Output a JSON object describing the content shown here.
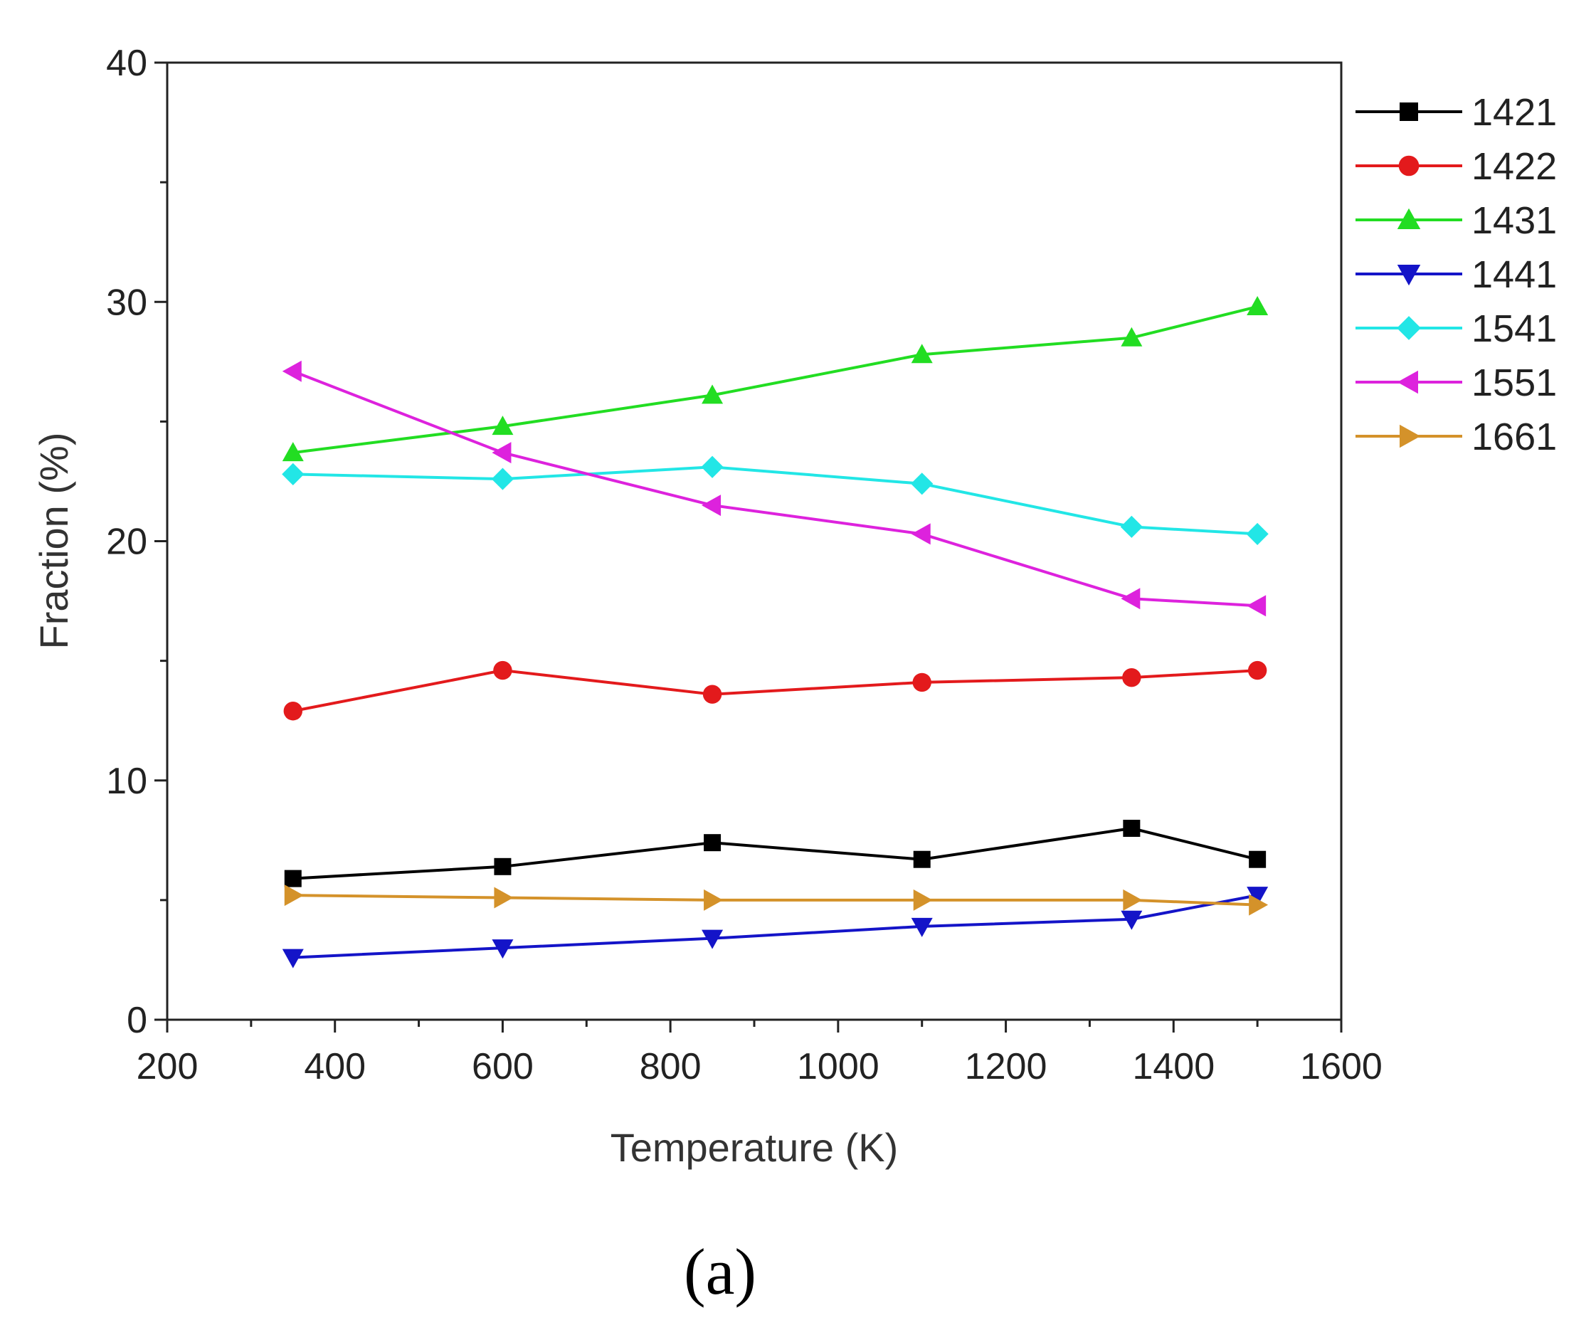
{
  "chart_data": {
    "type": "line",
    "title": "",
    "xlabel": "Temperature (K)",
    "ylabel": "Fraction (%)",
    "xlim": [
      200,
      1600
    ],
    "ylim": [
      0,
      40
    ],
    "xticks": [
      200,
      400,
      600,
      800,
      1000,
      1200,
      1400,
      1600
    ],
    "yticks": [
      0,
      10,
      20,
      30,
      40
    ],
    "grid": false,
    "legend_position": "right",
    "x": [
      350,
      600,
      850,
      1100,
      1350,
      1500
    ],
    "series": [
      {
        "name": "1421",
        "color": "#000000",
        "marker": "square",
        "values": [
          5.9,
          6.4,
          7.4,
          6.7,
          8.0,
          6.7
        ]
      },
      {
        "name": "1422",
        "color": "#e31a1c",
        "marker": "circle",
        "values": [
          12.9,
          14.6,
          13.6,
          14.1,
          14.3,
          14.6
        ]
      },
      {
        "name": "1431",
        "color": "#22dd22",
        "marker": "triangle-up",
        "values": [
          23.7,
          24.8,
          26.1,
          27.8,
          28.5,
          29.8
        ]
      },
      {
        "name": "1441",
        "color": "#1414c8",
        "marker": "triangle-down",
        "values": [
          2.6,
          3.0,
          3.4,
          3.9,
          4.2,
          5.2
        ]
      },
      {
        "name": "1541",
        "color": "#22e6e6",
        "marker": "diamond",
        "values": [
          22.8,
          22.6,
          23.1,
          22.4,
          20.6,
          20.3
        ]
      },
      {
        "name": "1551",
        "color": "#dd22dd",
        "marker": "triangle-left",
        "values": [
          27.1,
          23.7,
          21.5,
          20.3,
          17.6,
          17.3
        ]
      },
      {
        "name": "1661",
        "color": "#d4922a",
        "marker": "triangle-right",
        "values": [
          5.2,
          5.1,
          5.0,
          5.0,
          5.0,
          4.8
        ]
      }
    ]
  },
  "caption": "(a)"
}
